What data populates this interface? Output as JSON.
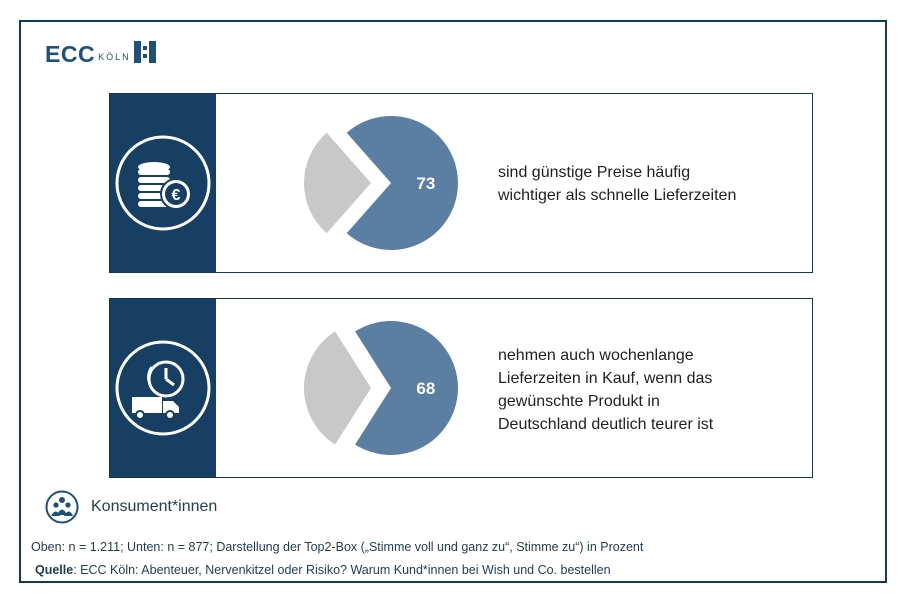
{
  "logo": {
    "brand": "ECC",
    "city": "KÖLN"
  },
  "colors": {
    "navy": "#163f63",
    "pie_main": "#5b7fa3",
    "pie_rest": "#c8c8c8",
    "text_blue": "#1f3b55"
  },
  "chart_data": [
    {
      "type": "pie",
      "categories": [
        "sind günstige Preise häufig wichtiger als schnelle Lieferzeiten",
        ""
      ],
      "values": [
        73,
        27
      ],
      "data_labels": [
        "73"
      ],
      "icon": "coins-euro-icon",
      "statement_lines": [
        "sind günstige Preise häufig",
        "wichtiger als schnelle Lieferzeiten"
      ]
    },
    {
      "type": "pie",
      "categories": [
        "nehmen auch wochenlange Lieferzeiten in Kauf, wenn das gewünschte Produkt in Deutschland deutlich teurer ist",
        ""
      ],
      "values": [
        68,
        32
      ],
      "data_labels": [
        "68"
      ],
      "icon": "clock-delivery-van-icon",
      "statement_lines": [
        "nehmen auch wochenlange",
        "Lieferzeiten in Kauf, wenn das",
        "gewünschte Produkt in",
        "Deutschland deutlich teurer ist"
      ]
    }
  ],
  "legend": {
    "icon": "people-group-icon",
    "label": "Konsument*innen"
  },
  "footnote": "Oben: n = 1.211; Unten: n = 877; Darstellung der Top2-Box („Stimme voll und ganz zu“, Stimme zu“) in Prozent",
  "source": {
    "label": "Quelle",
    "text": ": ECC Köln: Abenteuer, Nervenkitzel oder Risiko? Warum Kund*innen bei Wish und Co. bestellen"
  }
}
